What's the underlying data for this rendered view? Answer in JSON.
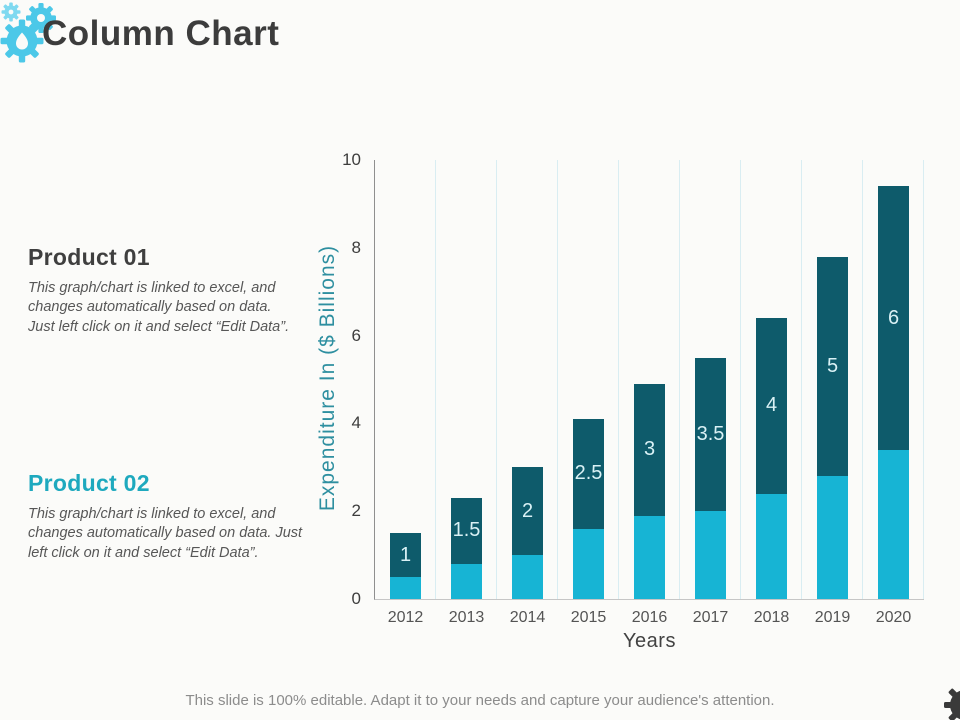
{
  "slide": {
    "title": "Column Chart",
    "footer": "This slide is 100% editable. Adapt it to your needs and capture your audience's attention."
  },
  "products": [
    {
      "heading": "Product 01",
      "body": "This graph/chart is linked to excel, and changes automatically based on data. Just left click on it and select “Edit Data”."
    },
    {
      "heading": "Product 02",
      "body": "This graph/chart is linked to excel, and changes automatically based on data. Just left click on it and select “Edit Data”."
    }
  ],
  "chart_data": {
    "type": "bar",
    "stacked": true,
    "categories": [
      "2012",
      "2013",
      "2014",
      "2015",
      "2016",
      "2017",
      "2018",
      "2019",
      "2020"
    ],
    "series": [
      {
        "name": "Product 02",
        "color": "#17B4D4",
        "values": [
          0.5,
          0.8,
          1.0,
          1.6,
          1.9,
          2.0,
          2.4,
          2.8,
          3.4
        ]
      },
      {
        "name": "Product 01",
        "color": "#0E5B6B",
        "values": [
          1,
          1.5,
          2,
          2.5,
          3,
          3.5,
          4,
          5,
          6
        ],
        "labels": [
          "1",
          "1.5",
          "2",
          "2.5",
          "3",
          "3.5",
          "4",
          "5",
          "6"
        ]
      }
    ],
    "title": "",
    "xlabel": "Years",
    "ylabel": "Expenditure In ($ Billions)",
    "ylim": [
      0,
      10
    ],
    "yticks": [
      0,
      2,
      4,
      6,
      8,
      10
    ],
    "grid": "vertical-category-separators",
    "legend": "none",
    "bar_label_color": "#D9F1F5",
    "gridline_color": "#D9EDF2"
  },
  "icons": {
    "top_left": "gears-icon",
    "bottom_right": "gear-icon",
    "gear_color_light": "#4CC8E8",
    "gear_color_dark": "#3A3A3A"
  }
}
